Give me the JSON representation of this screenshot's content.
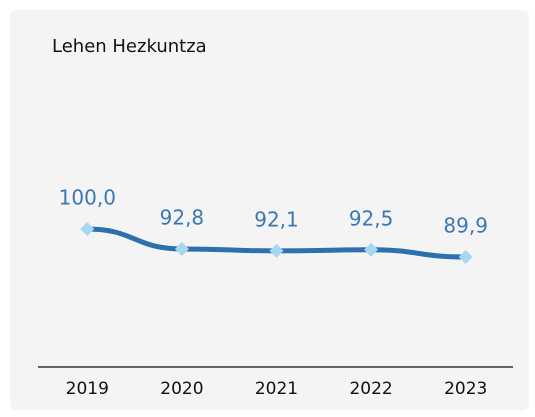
{
  "chart_data": {
    "type": "line",
    "title": "Lehen Hezkuntza",
    "categories": [
      "2019",
      "2020",
      "2021",
      "2022",
      "2023"
    ],
    "values": [
      100.0,
      92.8,
      92.1,
      92.5,
      89.9
    ],
    "value_labels": [
      "100,0",
      "92,8",
      "92,1",
      "92,5",
      "89,9"
    ],
    "color": "#2e6fad",
    "marker_color": "#a6d8f0",
    "label_color": "#3a78b5"
  }
}
